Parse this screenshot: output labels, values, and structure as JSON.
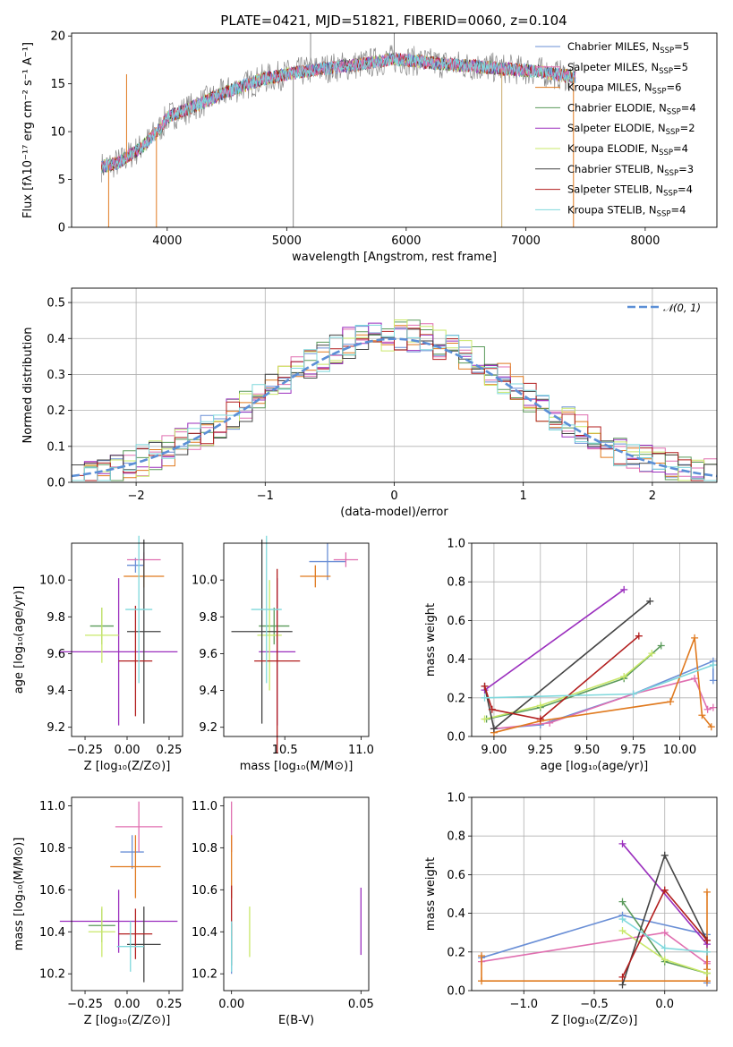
{
  "title": "PLATE=0421, MJD=51821, FIBERID=0060, z=0.104",
  "colors": {
    "Chabrier MILES": "#6a8fd6",
    "Salpeter MILES": "#e06fb0",
    "Kroupa MILES": "#e07a1f",
    "Chabrier ELODIE": "#5a9a5a",
    "Salpeter ELODIE": "#9b2fbe",
    "Kroupa ELODIE": "#c9e86a",
    "Chabrier STELIB": "#444444",
    "Salpeter STELIB": "#b21e1e",
    "Kroupa STELIB": "#7fd8dc",
    "normal": "#5b8fd6",
    "spectrum": "#888888"
  },
  "chart_data": [
    {
      "id": "spectrum",
      "type": "line",
      "xlabel": "wavelength [Angstrom, rest frame]",
      "ylabel": "Flux [fλ10⁻¹⁷ erg cm⁻² s⁻¹ A⁻¹]",
      "xlim": [
        3200,
        8600
      ],
      "ylim": [
        0,
        20.3
      ],
      "xticks": [
        "4000",
        "5000",
        "6000",
        "7000",
        "8000"
      ],
      "yticks": [
        "0",
        "5",
        "10",
        "15",
        "20"
      ],
      "grid": false,
      "legend": "right",
      "legend_entries": [
        {
          "label": "Chabrier MILES, N",
          "sub": "SSP",
          "tail": "=5"
        },
        {
          "label": "Salpeter MILES, N",
          "sub": "SSP",
          "tail": "=5"
        },
        {
          "label": "Kroupa MILES, N",
          "sub": "SSP",
          "tail": "=6"
        },
        {
          "label": "Chabrier ELODIE, N",
          "sub": "SSP",
          "tail": "=4"
        },
        {
          "label": "Salpeter ELODIE, N",
          "sub": "SSP",
          "tail": "=2"
        },
        {
          "label": "Kroupa ELODIE, N",
          "sub": "SSP",
          "tail": "=4"
        },
        {
          "label": "Chabrier STELIB, N",
          "sub": "SSP",
          "tail": "=3"
        },
        {
          "label": "Salpeter STELIB, N",
          "sub": "SSP",
          "tail": "=4"
        },
        {
          "label": "Kroupa STELIB, N",
          "sub": "SSP",
          "tail": "=4"
        }
      ],
      "continuum": {
        "x": [
          3450,
          3600,
          3800,
          3950,
          4000,
          4200,
          4500,
          4800,
          5000,
          5300,
          5600,
          5900,
          6200,
          6500,
          6800,
          7100,
          7300,
          7400
        ],
        "y": [
          6.3,
          6.8,
          8.5,
          10.5,
          11.5,
          12.5,
          14.2,
          15.5,
          16.0,
          16.6,
          17.0,
          17.6,
          17.2,
          16.9,
          16.6,
          16.3,
          15.9,
          15.7
        ]
      },
      "spikes": [
        {
          "x": 3660,
          "y": 16.0
        },
        {
          "x": 5055,
          "y": 0.0
        },
        {
          "x": 5200,
          "y": 20.3
        },
        {
          "x": 5900,
          "y": 20.3
        },
        {
          "x": 6800,
          "y": 0.0
        },
        {
          "x": 7400,
          "y": 0.0
        },
        {
          "x": 3510,
          "y": 0.0
        },
        {
          "x": 3910,
          "y": 0.0
        }
      ]
    },
    {
      "id": "residuals",
      "type": "histogram",
      "xlabel": "(data-model)/error",
      "ylabel": "Normed distribution",
      "xlim": [
        -2.5,
        2.5
      ],
      "ylim": [
        0,
        0.54
      ],
      "xticks": [
        "−2",
        "−1",
        "0",
        "1",
        "2"
      ],
      "yticks": [
        "0.0",
        "0.1",
        "0.2",
        "0.3",
        "0.4",
        "0.5"
      ],
      "grid": true,
      "legend_label": "𝒩(0, 1)",
      "bin_width": 0.1
    },
    {
      "id": "age_vs_Z",
      "type": "errorbar",
      "xlabel": "Z [log₁₀(Z/Z⊙)]",
      "ylabel": "age  [log₁₀(age/yr)]",
      "xlim": [
        -0.33,
        0.33
      ],
      "ylim": [
        9.15,
        10.2
      ],
      "xticks": [
        "−0.25",
        "0.00",
        "0.25"
      ],
      "yticks": [
        "9.2",
        "9.4",
        "9.6",
        "9.8",
        "10.0"
      ],
      "points": [
        {
          "model": "Chabrier MILES",
          "x": 0.05,
          "xerr": 0.05,
          "y": 10.08,
          "yerr": 0.04
        },
        {
          "model": "Salpeter MILES",
          "x": 0.1,
          "xerr": 0.1,
          "y": 10.11,
          "yerr": 0.04
        },
        {
          "model": "Kroupa MILES",
          "x": 0.1,
          "xerr": 0.12,
          "y": 10.02,
          "yerr": 0.06
        },
        {
          "model": "Chabrier ELODIE",
          "x": -0.15,
          "xerr": 0.07,
          "y": 9.75,
          "yerr": 0.1
        },
        {
          "model": "Salpeter ELODIE",
          "x": -0.05,
          "xerr": 0.35,
          "y": 9.61,
          "yerr": 0.4
        },
        {
          "model": "Kroupa ELODIE",
          "x": -0.15,
          "xerr": 0.1,
          "y": 9.7,
          "yerr": 0.15
        },
        {
          "model": "Chabrier STELIB",
          "x": 0.1,
          "xerr": 0.1,
          "y": 9.72,
          "yerr": 0.5
        },
        {
          "model": "Salpeter STELIB",
          "x": 0.05,
          "xerr": 0.1,
          "y": 9.56,
          "yerr": 0.3
        },
        {
          "model": "Kroupa STELIB",
          "x": 0.07,
          "xerr": 0.08,
          "y": 9.84,
          "yerr": 0.4
        }
      ]
    },
    {
      "id": "age_vs_mass",
      "type": "errorbar",
      "xlabel": "mass [log₁₀(M/M⊙)]",
      "ylabel": "",
      "xlim": [
        10.1,
        11.05
      ],
      "ylim": [
        9.15,
        10.2
      ],
      "xticks": [
        "10.5",
        "11.0"
      ],
      "yticks": [
        "9.2",
        "9.4",
        "9.6",
        "9.8",
        "10.0"
      ],
      "points": [
        {
          "model": "Chabrier MILES",
          "x": 10.78,
          "xerr": 0.12,
          "y": 10.1,
          "yerr": 0.1
        },
        {
          "model": "Salpeter MILES",
          "x": 10.9,
          "xerr": 0.08,
          "y": 10.11,
          "yerr": 0.04
        },
        {
          "model": "Kroupa MILES",
          "x": 10.7,
          "xerr": 0.1,
          "y": 10.02,
          "yerr": 0.06
        },
        {
          "model": "Chabrier ELODIE",
          "x": 10.43,
          "xerr": 0.1,
          "y": 9.75,
          "yerr": 0.1
        },
        {
          "model": "Salpeter ELODIE",
          "x": 10.45,
          "xerr": 0.12,
          "y": 9.61,
          "yerr": 0.4
        },
        {
          "model": "Kroupa ELODIE",
          "x": 10.4,
          "xerr": 0.08,
          "y": 9.7,
          "yerr": 0.3
        },
        {
          "model": "Chabrier STELIB",
          "x": 10.35,
          "xerr": 0.2,
          "y": 9.72,
          "yerr": 0.5
        },
        {
          "model": "Salpeter STELIB",
          "x": 10.45,
          "xerr": 0.15,
          "y": 9.56,
          "yerr": 0.5
        },
        {
          "model": "Kroupa STELIB",
          "x": 10.38,
          "xerr": 0.1,
          "y": 9.84,
          "yerr": 0.4
        }
      ]
    },
    {
      "id": "weight_vs_age",
      "type": "line",
      "xlabel": "age  [log₁₀(age/yr)]",
      "ylabel": "mass weight",
      "xlim": [
        8.88,
        10.2
      ],
      "ylim": [
        0,
        1
      ],
      "xticks": [
        "9.00",
        "9.25",
        "9.50",
        "9.75",
        "10.00"
      ],
      "yticks": [
        "0.0",
        "0.2",
        "0.4",
        "0.6",
        "0.8",
        "1.0"
      ],
      "grid": true,
      "series": [
        {
          "model": "Chabrier MILES",
          "x": [
            9.0,
            9.25,
            9.75,
            10.18,
            10.18
          ],
          "y": [
            0.04,
            0.06,
            0.22,
            0.39,
            0.29
          ]
        },
        {
          "model": "Salpeter MILES",
          "x": [
            9.0,
            9.3,
            9.75,
            10.08,
            10.15,
            10.18
          ],
          "y": [
            0.04,
            0.07,
            0.22,
            0.3,
            0.14,
            0.15
          ]
        },
        {
          "model": "Kroupa MILES",
          "x": [
            9.0,
            9.25,
            9.95,
            10.08,
            10.12,
            10.17
          ],
          "y": [
            0.02,
            0.08,
            0.18,
            0.51,
            0.11,
            0.05
          ]
        },
        {
          "model": "Chabrier ELODIE",
          "x": [
            8.96,
            9.25,
            9.7,
            9.9
          ],
          "y": [
            0.09,
            0.15,
            0.3,
            0.47
          ]
        },
        {
          "model": "Salpeter ELODIE",
          "x": [
            8.95,
            9.7
          ],
          "y": [
            0.24,
            0.76
          ]
        },
        {
          "model": "Kroupa ELODIE",
          "x": [
            8.95,
            9.25,
            9.7,
            9.85
          ],
          "y": [
            0.09,
            0.16,
            0.31,
            0.43
          ]
        },
        {
          "model": "Chabrier STELIB",
          "x": [
            8.95,
            9.0,
            9.84
          ],
          "y": [
            0.26,
            0.04,
            0.7
          ]
        },
        {
          "model": "Salpeter STELIB",
          "x": [
            8.95,
            8.99,
            9.25,
            9.78
          ],
          "y": [
            0.26,
            0.14,
            0.09,
            0.52
          ]
        },
        {
          "model": "Kroupa STELIB",
          "x": [
            8.95,
            9.75,
            10.18
          ],
          "y": [
            0.2,
            0.22,
            0.37
          ]
        }
      ]
    },
    {
      "id": "mass_vs_Z",
      "type": "errorbar",
      "xlabel": "Z [log₁₀(Z/Z⊙)]",
      "ylabel": "mass [log₁₀(M/M⊙)]",
      "xlim": [
        -0.33,
        0.33
      ],
      "ylim": [
        10.12,
        11.04
      ],
      "xticks": [
        "−0.25",
        "0.00",
        "0.25"
      ],
      "yticks": [
        "10.2",
        "10.4",
        "10.6",
        "10.8",
        "11.0"
      ],
      "points": [
        {
          "model": "Chabrier MILES",
          "x": 0.03,
          "xerr": 0.07,
          "y": 10.78,
          "yerr": 0.08
        },
        {
          "model": "Salpeter MILES",
          "x": 0.07,
          "xerr": 0.14,
          "y": 10.9,
          "yerr": 0.12
        },
        {
          "model": "Kroupa MILES",
          "x": 0.05,
          "xerr": 0.15,
          "y": 10.71,
          "yerr": 0.15
        },
        {
          "model": "Chabrier ELODIE",
          "x": -0.15,
          "xerr": 0.08,
          "y": 10.43,
          "yerr": 0.08
        },
        {
          "model": "Salpeter ELODIE",
          "x": -0.05,
          "xerr": 0.35,
          "y": 10.45,
          "yerr": 0.15
        },
        {
          "model": "Kroupa ELODIE",
          "x": -0.15,
          "xerr": 0.08,
          "y": 10.4,
          "yerr": 0.12
        },
        {
          "model": "Chabrier STELIB",
          "x": 0.1,
          "xerr": 0.1,
          "y": 10.34,
          "yerr": 0.18
        },
        {
          "model": "Salpeter STELIB",
          "x": 0.05,
          "xerr": 0.1,
          "y": 10.39,
          "yerr": 0.12
        },
        {
          "model": "Kroupa STELIB",
          "x": 0.02,
          "xerr": 0.08,
          "y": 10.33,
          "yerr": 0.12
        }
      ]
    },
    {
      "id": "mass_vs_ebv",
      "type": "errorbar",
      "xlabel": "E(B-V)",
      "ylabel": "",
      "xlim": [
        -0.003,
        0.053
      ],
      "ylim": [
        10.12,
        11.04
      ],
      "xticks": [
        "0.00",
        "0.05"
      ],
      "yticks": [
        "10.2",
        "10.4",
        "10.6",
        "10.8",
        "11.0"
      ],
      "points": [
        {
          "model": "Chabrier MILES",
          "x": 0.0,
          "xerr": 0,
          "y": 10.3,
          "yerr": 0.1
        },
        {
          "model": "Salpeter MILES",
          "x": 0.0,
          "xerr": 0,
          "y": 10.9,
          "yerr": 0.12
        },
        {
          "model": "Kroupa MILES",
          "x": 0.0,
          "xerr": 0,
          "y": 10.71,
          "yerr": 0.15
        },
        {
          "model": "Chabrier ELODIE",
          "x": 0.0,
          "xerr": 0,
          "y": 10.35,
          "yerr": 0.08
        },
        {
          "model": "Salpeter ELODIE",
          "x": 0.05,
          "xerr": 0,
          "y": 10.45,
          "yerr": 0.16
        },
        {
          "model": "Kroupa ELODIE",
          "x": 0.007,
          "xerr": 0,
          "y": 10.4,
          "yerr": 0.12
        },
        {
          "model": "Chabrier STELIB",
          "x": 0.0,
          "xerr": 0,
          "y": 10.34,
          "yerr": 0.1
        },
        {
          "model": "Salpeter STELIB",
          "x": 0.0,
          "xerr": 0,
          "y": 10.5,
          "yerr": 0.12
        },
        {
          "model": "Kroupa STELIB",
          "x": 0.0,
          "xerr": 0,
          "y": 10.33,
          "yerr": 0.12
        }
      ]
    },
    {
      "id": "weight_vs_Z",
      "type": "line",
      "xlabel": "Z [log₁₀(Z/Z⊙)]",
      "ylabel": "mass weight",
      "xlim": [
        -1.37,
        0.37
      ],
      "ylim": [
        0,
        1
      ],
      "xticks": [
        "−1.0",
        "−0.5",
        "0.0"
      ],
      "yticks": [
        "0.0",
        "0.2",
        "0.4",
        "0.6",
        "0.8",
        "1.0"
      ],
      "grid": true,
      "series": [
        {
          "model": "Chabrier MILES",
          "x": [
            -1.3,
            -0.3,
            0.3,
            0.3
          ],
          "y": [
            0.17,
            0.39,
            0.29,
            0.04
          ]
        },
        {
          "model": "Salpeter MILES",
          "x": [
            -1.3,
            0.0,
            0.3,
            0.3
          ],
          "y": [
            0.15,
            0.3,
            0.14,
            0.15
          ]
        },
        {
          "model": "Kroupa MILES",
          "x": [
            -1.3,
            -1.3,
            0.3,
            0.3,
            0.3
          ],
          "y": [
            0.18,
            0.05,
            0.05,
            0.51,
            0.11
          ]
        },
        {
          "model": "Chabrier ELODIE",
          "x": [
            -0.3,
            0.0,
            0.3
          ],
          "y": [
            0.46,
            0.15,
            0.09
          ]
        },
        {
          "model": "Salpeter ELODIE",
          "x": [
            -0.3,
            0.3
          ],
          "y": [
            0.76,
            0.24
          ]
        },
        {
          "model": "Kroupa ELODIE",
          "x": [
            -0.3,
            0.0,
            0.3
          ],
          "y": [
            0.31,
            0.16,
            0.09
          ]
        },
        {
          "model": "Chabrier STELIB",
          "x": [
            -0.3,
            0.0,
            0.3
          ],
          "y": [
            0.03,
            0.7,
            0.26
          ]
        },
        {
          "model": "Salpeter STELIB",
          "x": [
            -0.3,
            0.0,
            0.3
          ],
          "y": [
            0.07,
            0.52,
            0.26
          ]
        },
        {
          "model": "Kroupa STELIB",
          "x": [
            -0.3,
            0.0,
            0.3
          ],
          "y": [
            0.37,
            0.22,
            0.2
          ]
        }
      ]
    }
  ]
}
